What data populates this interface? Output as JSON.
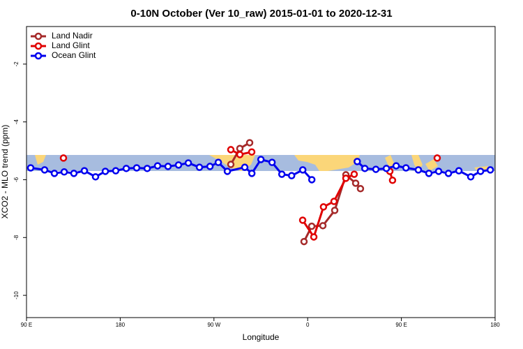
{
  "chart_data": {
    "type": "line",
    "title": "0-10N October (Ver 10_raw)   2015-01-01 to 2020-12-31",
    "x_label": "Longitude",
    "y_label": "XCO2 - MLO trend (ppm)",
    "xlim": [
      90,
      540
    ],
    "xticks": [
      {
        "value": 90,
        "label": "90 E"
      },
      180,
      {
        "value": 270,
        "label": "90 W"
      },
      {
        "value": 360,
        "label": "0"
      },
      {
        "value": 450,
        "label": "90 E"
      },
      {
        "value": 540,
        "label": "180"
      }
    ],
    "ylim": [
      -10.77,
      -0.7
    ],
    "yticks": [
      -10,
      -8,
      -6,
      -4,
      -2
    ],
    "legend": "top-left",
    "series": [
      {
        "name": "Land Nadir",
        "color": "#a52a2a",
        "x": [
          286.2,
          294.9,
          304.3,
          null,
          356.5,
          363.9,
          374.6,
          386.0,
          396.7,
          406.1,
          410.7
        ],
        "values": [
          -5.47,
          -4.92,
          -4.72,
          null,
          -8.14,
          -7.61,
          -7.59,
          -7.06,
          -5.83,
          -6.12,
          -6.31
        ]
      },
      {
        "name": "Land Glint",
        "color": "#e00000",
        "x": [
          125.5,
          null,
          286.2,
          294.9,
          306.3,
          null,
          355.2,
          365.9,
          375.2,
          385.3,
          396.7,
          404.7,
          null,
          438.9,
          441.5,
          null,
          484.4
        ],
        "values": [
          -5.25,
          null,
          -4.96,
          -5.13,
          -5.04,
          null,
          -7.4,
          -7.98,
          -6.94,
          -6.75,
          -5.95,
          -5.81,
          null,
          -5.71,
          -6.02,
          null,
          -5.25
        ]
      },
      {
        "name": "Ocean Glint",
        "color": "#0000ee",
        "x": [
          94.0,
          107.4,
          116.8,
          126.2,
          135.5,
          145.6,
          156.3,
          165.7,
          175.7,
          185.8,
          195.8,
          205.9,
          215.9,
          225.9,
          236.0,
          245.4,
          256.1,
          266.2,
          274.2,
          282.9,
          299.6,
          306.4,
          315.1,
          325.8,
          335.2,
          344.6,
          355.3,
          364.0,
          null,
          407.6,
          414.9,
          425.5,
          435.6,
          445.0,
          454.4,
          466.3,
          476.4,
          485.8,
          495.2,
          505.2,
          516.6,
          526.0,
          535.4
        ],
        "values": [
          -5.59,
          -5.66,
          -5.78,
          -5.73,
          -5.78,
          -5.69,
          -5.9,
          -5.71,
          -5.69,
          -5.61,
          -5.59,
          -5.61,
          -5.52,
          -5.54,
          -5.49,
          -5.42,
          -5.57,
          -5.54,
          -5.4,
          -5.71,
          -5.57,
          -5.78,
          -5.3,
          -5.4,
          -5.81,
          -5.86,
          -5.66,
          -6.0,
          null,
          -5.37,
          -5.61,
          -5.64,
          -5.61,
          -5.52,
          -5.59,
          -5.66,
          -5.78,
          -5.71,
          -5.78,
          -5.69,
          -5.9,
          -5.71,
          -5.66
        ]
      }
    ]
  }
}
